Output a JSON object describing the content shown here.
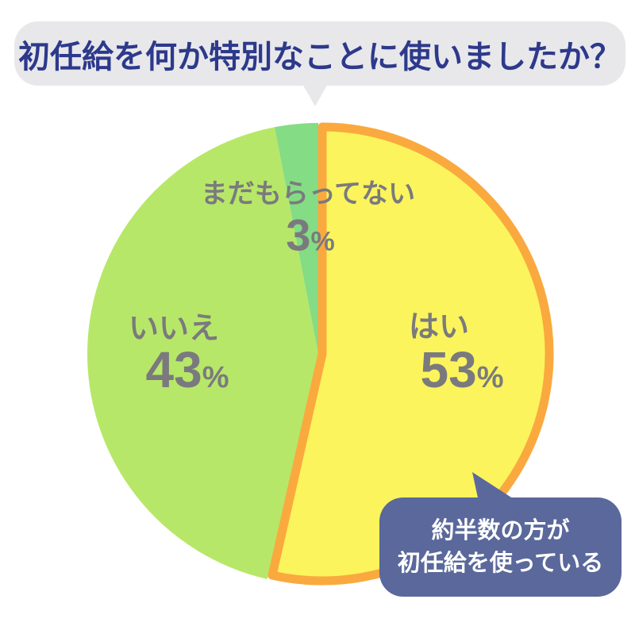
{
  "background": "#FFFFFF",
  "title_bubble": {
    "text": "初任給を何か特別なことに使いましたか？",
    "bg_color": "#E8E8EB",
    "text_color": "#2D398B"
  },
  "chart_data": {
    "type": "pie",
    "title": "初任給を何か特別なことに使いましたか？",
    "unit": "%",
    "start_angle_deg": 0,
    "direction": "clockwise",
    "legend_position": "none",
    "labels_on_chart": true,
    "label_text_color": "#7A7A7E",
    "slices": [
      {
        "label": "はい",
        "value": 53,
        "color": "#FBF45C",
        "stroke": "#FAA93F"
      },
      {
        "label": "いいえ",
        "value": 43,
        "color": "#B7E768"
      },
      {
        "label": "まだもらってない",
        "value": 3,
        "color": "#84DC84"
      }
    ]
  },
  "annotation_bubble": {
    "lines": [
      "約半数の方が",
      "初任給を使っている"
    ],
    "bg_color": "#5A689B",
    "text_color": "#FFFFFF"
  }
}
